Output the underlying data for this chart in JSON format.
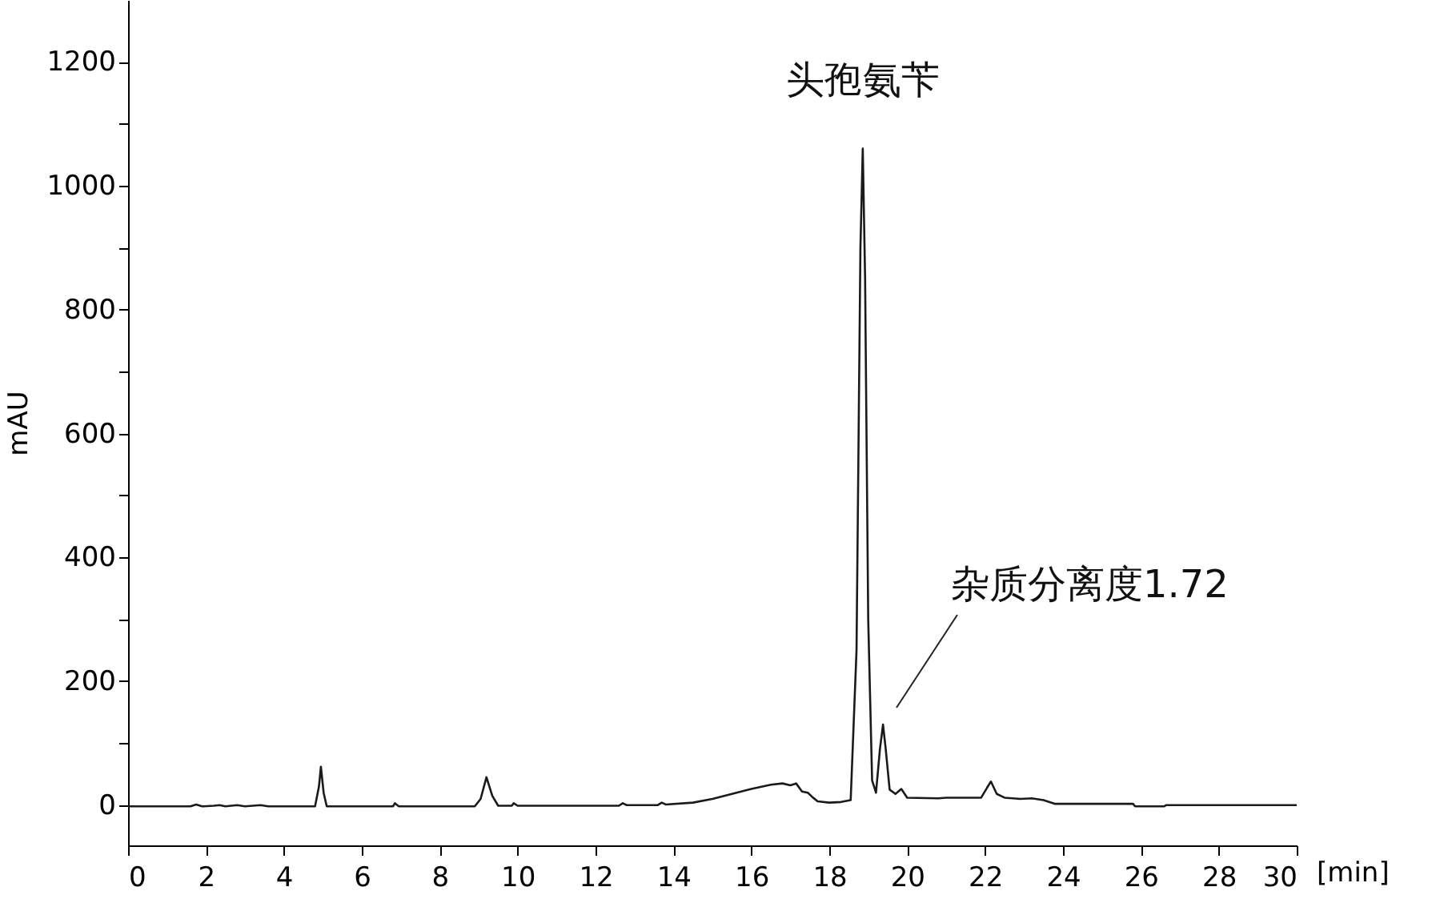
{
  "chart_data": {
    "type": "line",
    "xlabel": "[min]",
    "ylabel": "mAU",
    "x": [
      0,
      1.6,
      1.75,
      1.9,
      2.2,
      2.35,
      2.5,
      2.8,
      3.0,
      3.4,
      3.6,
      4.0,
      4.8,
      4.9,
      4.95,
      5.02,
      5.1,
      6.8,
      6.85,
      6.95,
      8.9,
      9.05,
      9.2,
      9.35,
      9.5,
      9.85,
      9.9,
      10.0,
      12.6,
      12.7,
      12.8,
      13.6,
      13.7,
      13.8,
      14.5,
      15.0,
      15.5,
      16.0,
      16.5,
      16.8,
      17.0,
      17.15,
      17.3,
      17.45,
      17.55,
      17.7,
      18.0,
      18.3,
      18.55,
      18.7,
      18.8,
      18.86,
      18.92,
      19.0,
      19.1,
      19.2,
      19.3,
      19.38,
      19.45,
      19.55,
      19.7,
      19.85,
      20.0,
      20.8,
      21.0,
      21.9,
      22.05,
      22.15,
      22.3,
      22.5,
      22.9,
      23.2,
      23.5,
      23.8,
      25.8,
      25.85,
      26.6,
      26.65,
      30
    ],
    "series": [
      {
        "color": "#1a1a1a",
        "values": [
          -2,
          -2,
          1,
          -2,
          -1,
          0,
          -2,
          0,
          -2,
          0,
          -2,
          -2,
          -2,
          30,
          62,
          20,
          -2,
          -2,
          3,
          -2,
          -2,
          10,
          45,
          15,
          -1,
          -1,
          3,
          -1,
          -1,
          3,
          0,
          0,
          4,
          1,
          4,
          10,
          18,
          26,
          33,
          35,
          32,
          35,
          22,
          20,
          14,
          6,
          4,
          5,
          8,
          250,
          900,
          1060,
          850,
          300,
          40,
          20,
          90,
          130,
          90,
          25,
          18,
          26,
          12,
          11,
          12,
          12,
          28,
          38,
          18,
          12,
          10,
          11,
          8,
          2,
          2,
          -2,
          -2,
          0,
          0
        ]
      }
    ],
    "xlim": [
      0,
      30
    ],
    "xticks": [
      0,
      2,
      4,
      6,
      8,
      10,
      12,
      14,
      16,
      18,
      20,
      22,
      24,
      26,
      28,
      30
    ],
    "ylim": [
      -65,
      1300
    ],
    "yticks": [
      0,
      {
        "value": 100,
        "label": null
      },
      200,
      {
        "value": 300,
        "label": null
      },
      400,
      {
        "value": 500,
        "label": null
      },
      600,
      {
        "value": 700,
        "label": null
      },
      800,
      {
        "value": 900,
        "label": null
      },
      1000,
      {
        "value": 1100,
        "label": null
      },
      1200
    ],
    "annotations": [
      {
        "text": "头孢氨苄",
        "x": 18.86,
        "y": 1060
      },
      "杂质分离度1.72"
    ],
    "grid": false,
    "marker": "none",
    "line_style": "solid"
  }
}
